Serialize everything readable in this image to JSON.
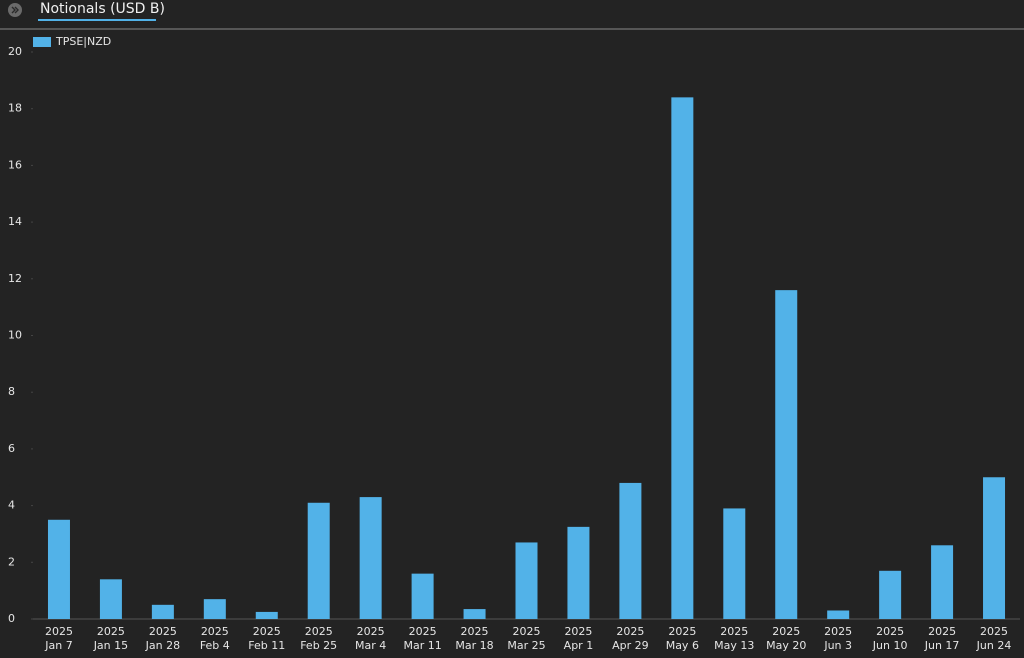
{
  "chart_data": {
    "type": "bar",
    "title": "Notionals (USD B)",
    "categories": [
      [
        "2025",
        "Jan 7"
      ],
      [
        "2025",
        "Jan 15"
      ],
      [
        "2025",
        "Jan 28"
      ],
      [
        "2025",
        "Feb 4"
      ],
      [
        "2025",
        "Feb 11"
      ],
      [
        "2025",
        "Feb 25"
      ],
      [
        "2025",
        "Mar 4"
      ],
      [
        "2025",
        "Mar 11"
      ],
      [
        "2025",
        "Mar 18"
      ],
      [
        "2025",
        "Mar 25"
      ],
      [
        "2025",
        "Apr 1"
      ],
      [
        "2025",
        "Apr 29"
      ],
      [
        "2025",
        "May 6"
      ],
      [
        "2025",
        "May 13"
      ],
      [
        "2025",
        "May 20"
      ],
      [
        "2025",
        "Jun 3"
      ],
      [
        "2025",
        "Jun 10"
      ],
      [
        "2025",
        "Jun 17"
      ],
      [
        "2025",
        "Jun 24"
      ]
    ],
    "series": [
      {
        "name": "TPSE|NZD",
        "color": "#52b2e8",
        "values": [
          3.5,
          1.4,
          0.5,
          0.7,
          0.25,
          4.1,
          4.3,
          1.6,
          0.35,
          2.7,
          3.25,
          4.8,
          18.4,
          3.9,
          11.6,
          0.3,
          1.7,
          2.6,
          5.0
        ]
      }
    ],
    "ylim": [
      0,
      20
    ],
    "yticks": [
      0,
      2,
      4,
      6,
      8,
      10,
      12,
      14,
      16,
      18,
      20
    ],
    "grid": false,
    "legend": "top-left"
  }
}
